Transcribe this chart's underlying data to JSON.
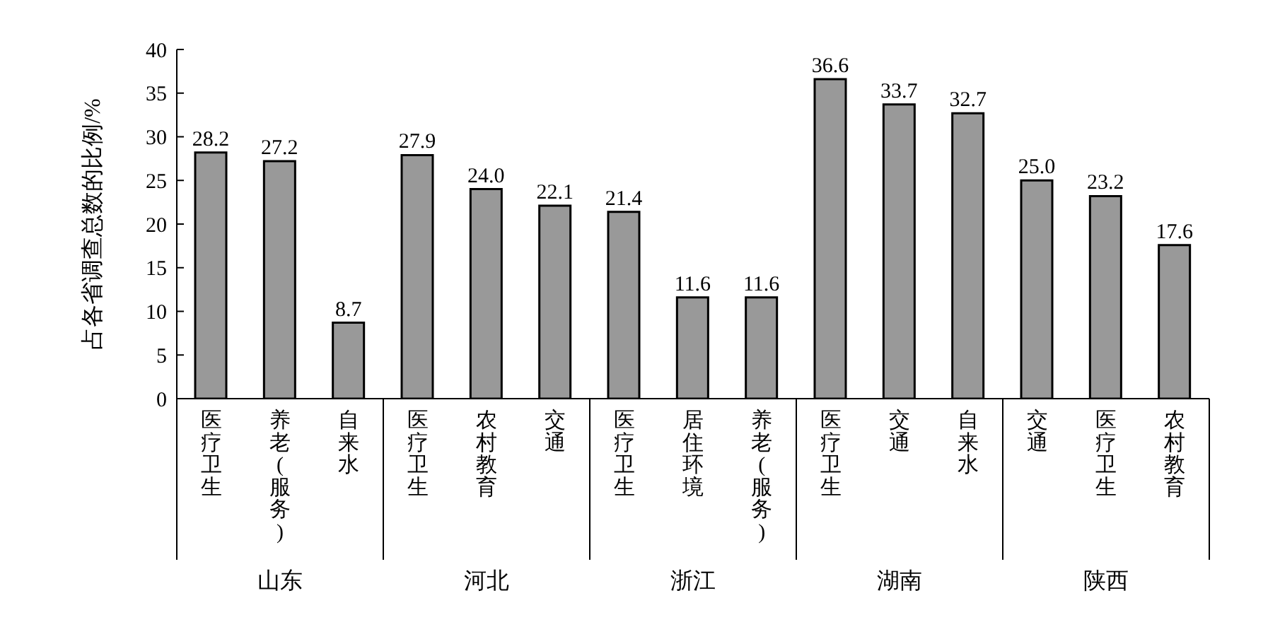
{
  "chart_data": {
    "type": "bar",
    "ylabel": "占各省调查总数的比例/%",
    "categories": [
      "医疗卫生",
      "养老(服务)",
      "自来水",
      "医疗卫生",
      "农村教育",
      "交通",
      "医疗卫生",
      "居住环境",
      "养老(服务)",
      "医疗卫生",
      "交通",
      "自来水",
      "交通",
      "医疗卫生",
      "农村教育"
    ],
    "values": [
      28.2,
      27.2,
      8.7,
      27.9,
      24.0,
      22.1,
      21.4,
      11.6,
      11.6,
      36.6,
      33.7,
      32.7,
      25.0,
      23.2,
      17.6
    ],
    "value_labels": [
      "28.2",
      "27.2",
      "8.7",
      "27.9",
      "24.0",
      "22.1",
      "21.4",
      "11.6",
      "11.6",
      "36.6",
      "33.7",
      "32.7",
      "25.0",
      "23.2",
      "17.6"
    ],
    "color": "#999999",
    "annotations": [
      "山东",
      "河北",
      "浙江",
      "湖南",
      "陕西"
    ],
    "ylim": [
      0,
      40
    ],
    "yticks": [
      0,
      5,
      10,
      15,
      20,
      25,
      30,
      35,
      40
    ],
    "grid": false,
    "legend": false
  }
}
